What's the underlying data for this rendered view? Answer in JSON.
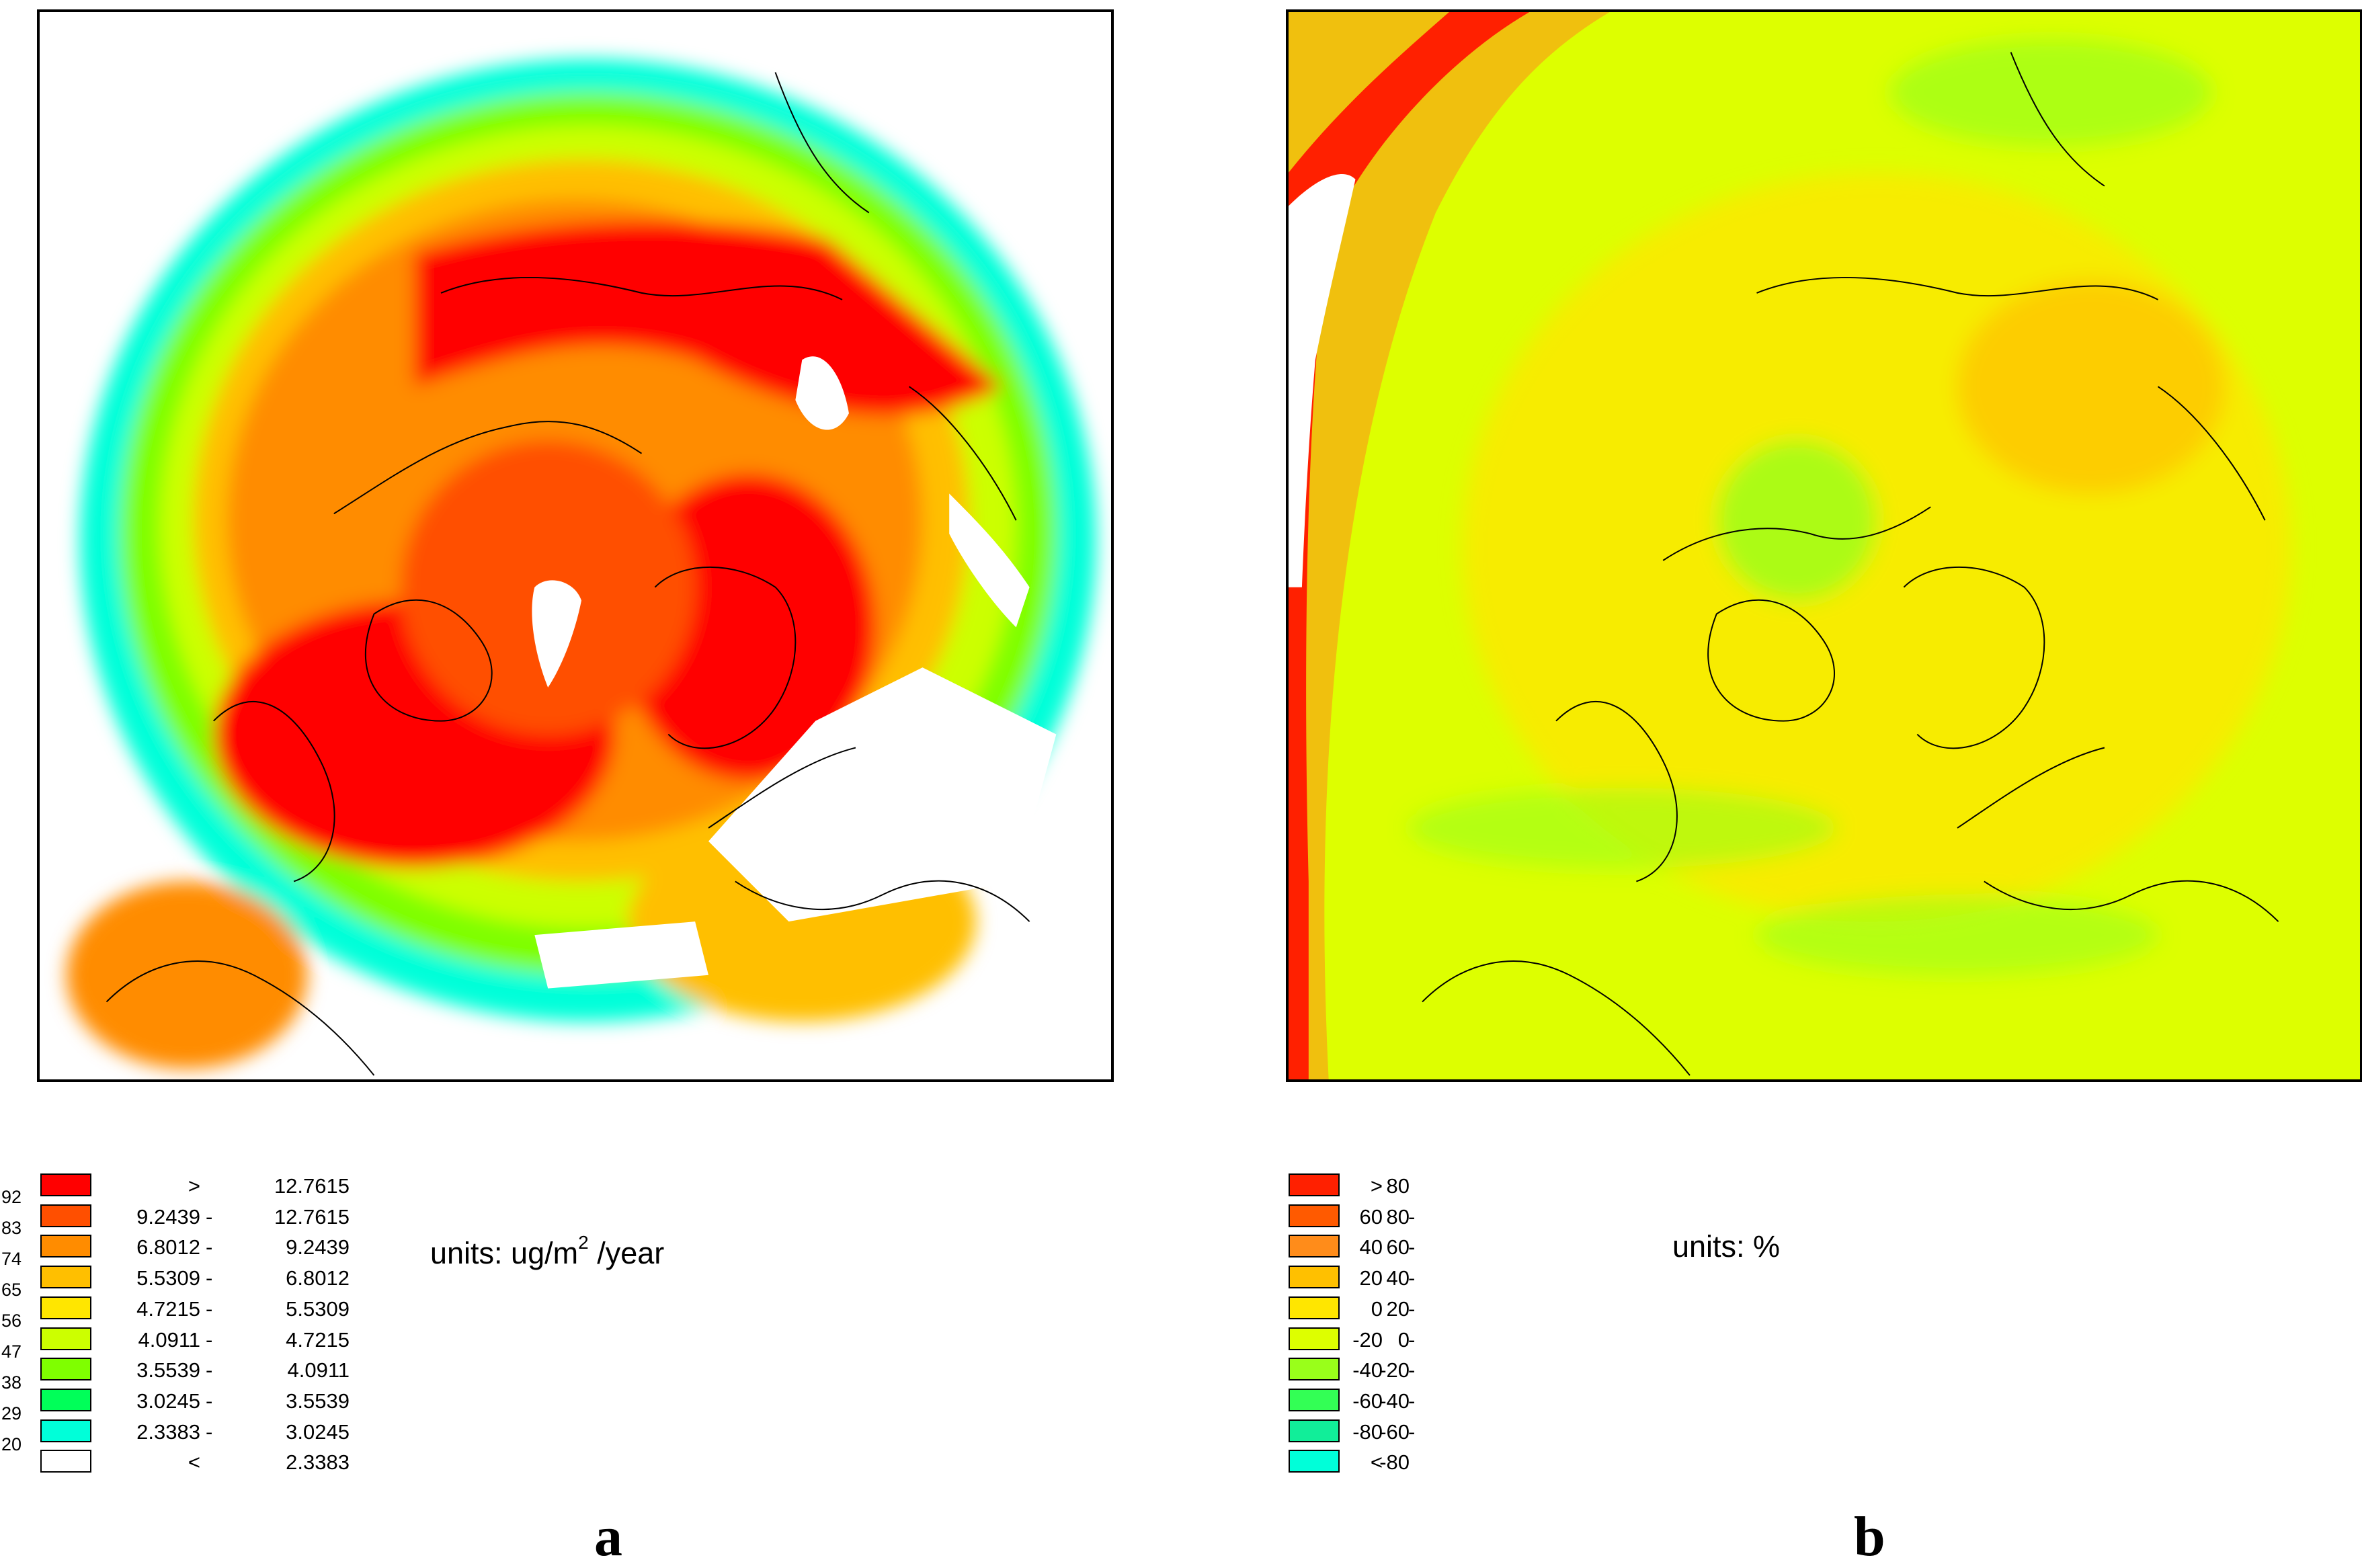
{
  "panel_a": {
    "letter": "a",
    "units_prefix": "units: ug/m",
    "units_exp": "2",
    "units_suffix": " /year",
    "side_numbers": [
      "92",
      "83",
      "74",
      "65",
      "56",
      "47",
      "38",
      "29",
      "20"
    ],
    "legend": [
      {
        "color": "#ff0000",
        "lo": ">",
        "dash": "",
        "hi": "12.7615"
      },
      {
        "color": "#ff4f00",
        "lo": "9.2439",
        "dash": "-",
        "hi": "12.7615"
      },
      {
        "color": "#ff8c00",
        "lo": "6.8012",
        "dash": "-",
        "hi": "9.2439"
      },
      {
        "color": "#ffbf00",
        "lo": "5.5309",
        "dash": "-",
        "hi": "6.8012"
      },
      {
        "color": "#ffe600",
        "lo": "4.7215",
        "dash": "-",
        "hi": "5.5309"
      },
      {
        "color": "#ccff00",
        "lo": "4.0911",
        "dash": "-",
        "hi": "4.7215"
      },
      {
        "color": "#7fff00",
        "lo": "3.5539",
        "dash": "-",
        "hi": "4.0911"
      },
      {
        "color": "#00ff59",
        "lo": "3.0245",
        "dash": "-",
        "hi": "3.5539"
      },
      {
        "color": "#00ffd9",
        "lo": "2.3383",
        "dash": "-",
        "hi": "3.0245"
      },
      {
        "color": "#ffffff",
        "lo": "<",
        "dash": "",
        "hi": "2.3383"
      }
    ]
  },
  "panel_b": {
    "letter": "b",
    "units_label": "units:  %",
    "legend": [
      {
        "color": "#ff2000",
        "lo": ">",
        "dash": "",
        "hi": "80"
      },
      {
        "color": "#ff5a00",
        "lo": "60",
        "dash": "-",
        "hi": "80"
      },
      {
        "color": "#ff8c1a",
        "lo": "40",
        "dash": "-",
        "hi": "60"
      },
      {
        "color": "#ffc000",
        "lo": "20",
        "dash": "-",
        "hi": "40"
      },
      {
        "color": "#ffe600",
        "lo": "0",
        "dash": "-",
        "hi": "20"
      },
      {
        "color": "#ddff00",
        "lo": "-20",
        "dash": "-",
        "hi": "0"
      },
      {
        "color": "#99ff1a",
        "lo": "-40",
        "dash": "-",
        "hi": "-20"
      },
      {
        "color": "#33ff55",
        "lo": "-60",
        "dash": "-",
        "hi": "-40"
      },
      {
        "color": "#11ee99",
        "lo": "-80",
        "dash": "-",
        "hi": "-60"
      },
      {
        "color": "#00ffd9",
        "lo": "<",
        "dash": "",
        "hi": "-80"
      }
    ]
  }
}
